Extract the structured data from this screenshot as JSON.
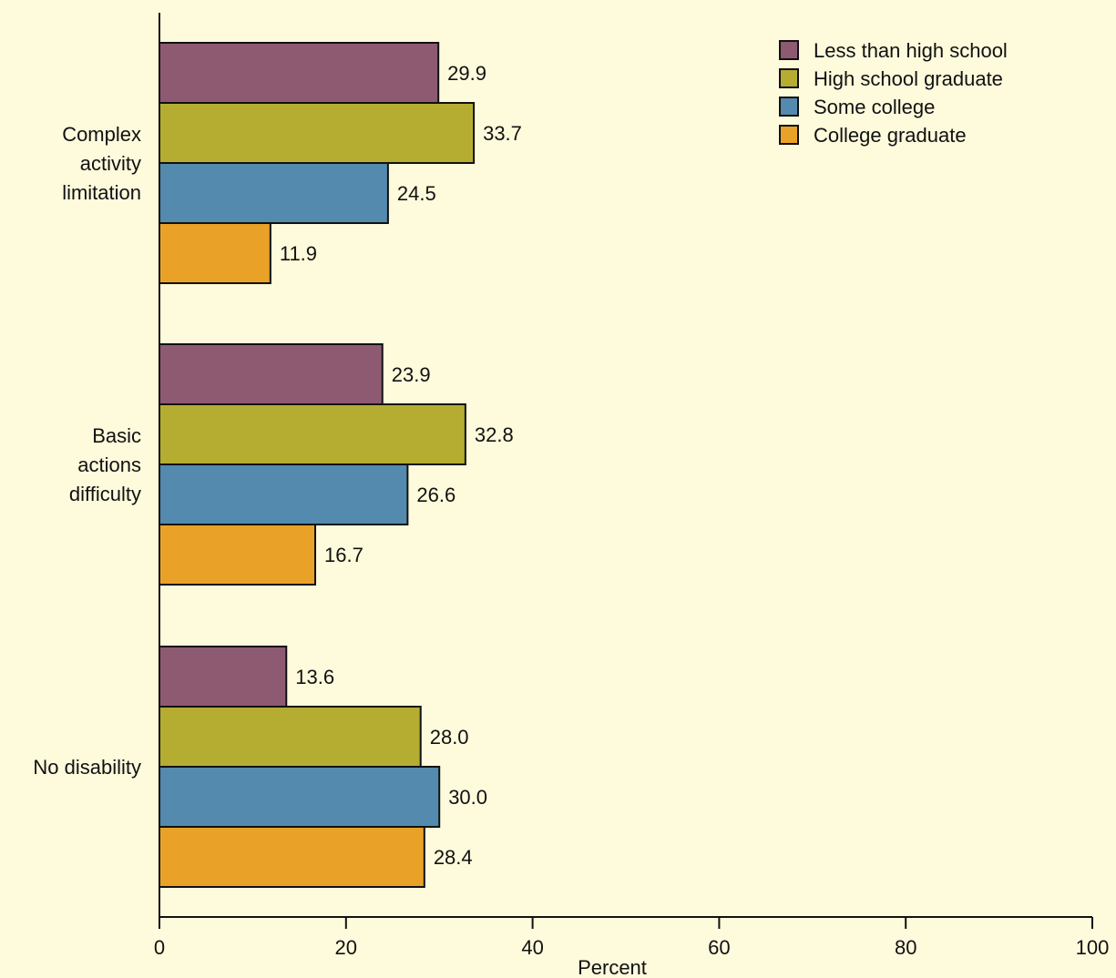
{
  "colors": {
    "background": "#fefadc",
    "axis": "#111111",
    "bar_stroke": "#111111"
  },
  "chart_data": {
    "type": "bar",
    "orientation": "horizontal",
    "title": "",
    "xlabel": "Percent",
    "ylabel": "",
    "xlim": [
      0,
      100
    ],
    "x_ticks": [
      0,
      20,
      40,
      60,
      80,
      100
    ],
    "grid": false,
    "legend_position": "top-right",
    "categories": [
      [
        "Complex",
        "activity",
        "limitation"
      ],
      [
        "Basic",
        "actions",
        "difficulty"
      ],
      [
        "No disability"
      ]
    ],
    "series": [
      {
        "name": "Less than high school",
        "color": "#8e5a72",
        "values": [
          29.9,
          23.9,
          13.6
        ],
        "labels": [
          "29.9",
          "23.9",
          "13.6"
        ]
      },
      {
        "name": "High school graduate",
        "color": "#b4ad32",
        "values": [
          33.7,
          32.8,
          28.0
        ],
        "labels": [
          "33.7",
          "32.8",
          "28.0"
        ]
      },
      {
        "name": "Some college",
        "color": "#548aae",
        "values": [
          24.5,
          26.6,
          30.0
        ],
        "labels": [
          "24.5",
          "26.6",
          "30.0"
        ]
      },
      {
        "name": "College graduate",
        "color": "#e9a227",
        "values": [
          11.9,
          16.7,
          28.4
        ],
        "labels": [
          "11.9",
          "16.7",
          "28.4"
        ]
      }
    ]
  }
}
